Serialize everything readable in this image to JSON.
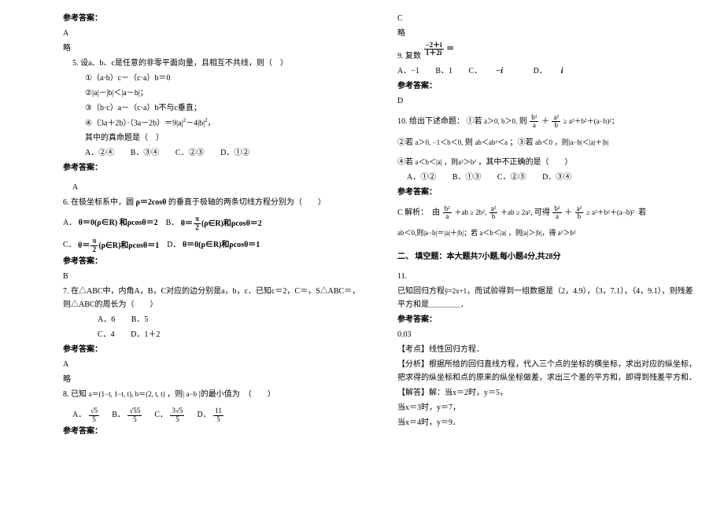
{
  "colors": {
    "text": "#000000",
    "bg": "#ffffff"
  },
  "fontsize": {
    "base": 10,
    "small": 9,
    "sup": 7
  },
  "left": {
    "ans_label": "参考答案：",
    "a1": "A",
    "brief": "略",
    "q5": {
      "stem": "5. 设a、b、c是任意的非零平面向量，且相互不共线，则（　）",
      "i1": "①（a·b）c－（c·a）b＝0",
      "i2": "②|a|－|b|＜|a－b|；",
      "i3": "③（b·c）a－（c·a）b不与c垂直；",
      "i4_pre": "④（3a＋2b）·（3a－2b）＝9|a|",
      "i4_mid": "－4|b|",
      "i4_post": "，",
      "truestem": "其中的真命题是（　）",
      "opts": {
        "A": "A．②④",
        "B": "B．③④",
        "C": "C．②③",
        "D": "D．①②"
      },
      "ans": "A"
    },
    "q6": {
      "stem_pre": "6. 在极坐标系中，圆",
      "rho_expr": "ρ＝2cosθ",
      "stem_post": "的垂直于极轴的两条切线方程分别为（　　）",
      "optA_pre": "A．",
      "optA_1": "θ＝0(ρ∈R)",
      "optA_2": "和ρcosθ＝2",
      "optB_pre": "B．",
      "optB_1_num": "π",
      "optB_1_den": "2",
      "optB_1_pre": "θ＝",
      "optB_1_post": "(ρ∈R)和ρcosθ＝2",
      "optC_pre": "C．",
      "optC_1_pre": "θ＝",
      "optC_1_num": "π",
      "optC_1_den": "2",
      "optC_1_post": "(ρ∈R)和ρcosθ＝1",
      "optD_pre": "D．",
      "optD_1": "θ＝0(ρ∈R)和ρcosθ＝1",
      "ans": "B"
    },
    "q7": {
      "stem": "7. 在△ABC中，内角A，B，C对应的边分别是a，b，c．已知c＝2，C＝，S△ABC＝，则△ABC的周长为（　　）",
      "opts": {
        "A": "A．6",
        "B": "B．5",
        "C": "C．4",
        "D": "D．1＋2"
      },
      "ans": "A",
      "brief": "略"
    },
    "q8": {
      "stem_pre": "8. 已知",
      "vec_a": "a＝(1−t, 1−t, t), b＝(2, t, t)",
      "stem_mid": "，则|",
      "ab": "a−b",
      "stem_post": "|的最小值为　（　　）",
      "optA_num": "√5",
      "optA_den": "5",
      "optB_num": "√55",
      "optB_den": "5",
      "optC_num": "3√5",
      "optC_den": "5",
      "optD_num": "11",
      "optD_den": "5",
      "optA_pre": "A．",
      "optB_pre": "B．",
      "optC_pre": "C．",
      "optD_pre": "D．",
      "ans": "参考答案："
    }
  },
  "right": {
    "c": "C",
    "brief": "略",
    "q9": {
      "stem_pre": "9. 复数",
      "frac_num": "−2＋i",
      "frac_den": "1＋2i",
      "eq": "＝",
      "opts": {
        "A": "A．−1",
        "B": "B．1",
        "C_pre": "C．",
        "C_val": "−i",
        "D_pre": "D．",
        "D_val": "i"
      },
      "ans_label": "参考答案：",
      "ans": "D"
    },
    "q10": {
      "stem_pre": "10. 给出下述命题：",
      "i1_pre": "①若",
      "i1_cond": "a＞0, b＞0,",
      "i1_then": "则",
      "i1_frac1_num": "b²",
      "i1_frac1_den": "a",
      "i1_plus": "＋",
      "i1_frac2_num": "a²",
      "i1_frac2_den": "b",
      "i1_geq": "≥ a²＋b²＋(a−b)²；",
      "i2_pre": "②若",
      "i2_c1": "a＞0, −1＜b＜0,",
      "i2_then": "则",
      "i2_r": "ab＜ab²＜a",
      "i3_pre": "；③若",
      "i3_c": "ab＜0",
      "i3_then": "，则|a−b|＜|a|＋|b|",
      "i4_pre": "④若",
      "i4_c": "a＜b＜|a|",
      "i4_then": "，则a²＞b²",
      "i4_post": "，其中不正确的是（　　）",
      "opts": {
        "A": "A．①②",
        "B": "B．①③",
        "C": "C．②③",
        "D": "D．③④"
      },
      "ans_label": "参考答案：",
      "ans_pre": "C 解析：　由",
      "sol_1": "b²",
      "sol_1d": "a",
      "sol_2": "＋ab ≥ 2b²,",
      "sol_3": "a²",
      "sol_3d": "b",
      "sol_4": "＋ab ≥ 2a²,",
      "sol_5": "可得",
      "sol_6": "≥ a²＋b²＋(a−b)²",
      "sol_line2": "ab＜0,则|a−b|＝|a|＋|b|；若 a＜b＜|a| ，则|a|＞|b|，得 a²＞b²",
      "sol_ruo": "若"
    },
    "section2": "二、 填空题：本大题共7小题,每小题4分,共28分",
    "q11": {
      "num": "11.",
      "stem_pre": "已知回归方程",
      "yhat": "ŷ=2x+1",
      "stem_mid": "，而试验得到一组数据是（2，4.9），（3，7.1），（4，9.1），则残差平方和是",
      "blank": "＿＿＿＿",
      "post": "．",
      "ans_label": "参考答案：",
      "ans": "0.03",
      "kd_label": "【考点】",
      "kd": "线性回归方程．",
      "fx_label": "【分析】",
      "fx": "根据所给的回归直线方程，代入三个点的坐标的横坐标，求出对应的纵坐标，把求得的纵坐标和点的原来的纵坐标做差，求出三个差的平方和，即得到残差平方和．",
      "jd_label": "【解答】",
      "jd_pre": "解：当x＝2时，y＝5，",
      "jd2": "当x＝3时，y＝7，",
      "jd3": "当x＝4时，y＝9．"
    }
  }
}
